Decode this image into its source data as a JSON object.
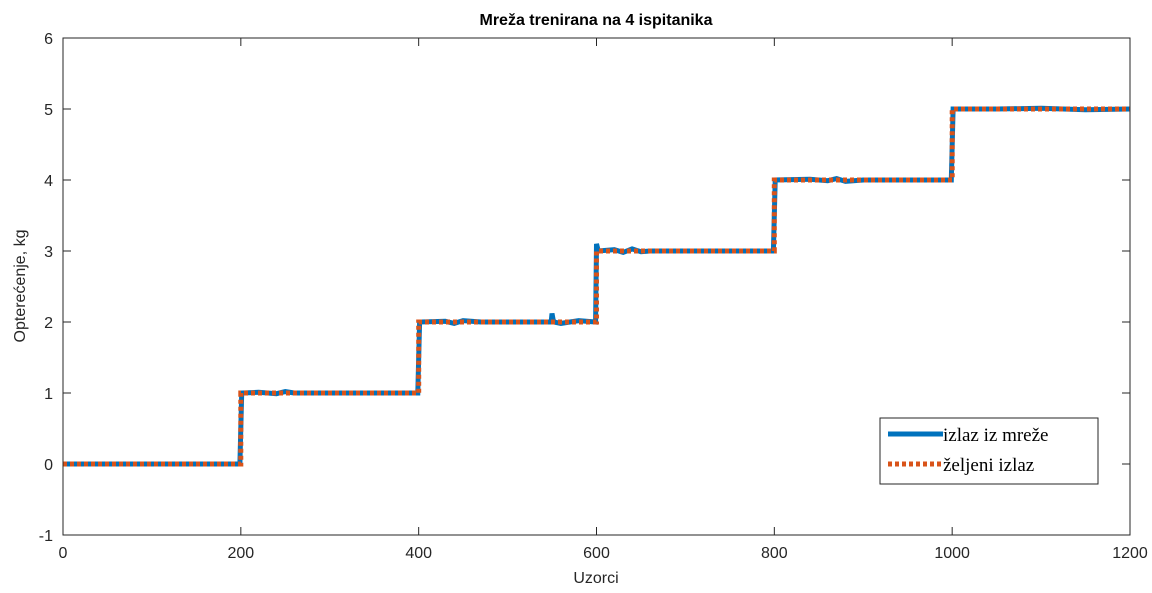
{
  "chart_data": {
    "type": "line",
    "title": "Mreža trenirana na 4 ispitanika",
    "xlabel": "Uzorci",
    "ylabel": "Opterećenje, kg",
    "xlim": [
      0,
      1200
    ],
    "ylim": [
      -1,
      6
    ],
    "xticks": [
      0,
      200,
      400,
      600,
      800,
      1000,
      1200
    ],
    "yticks": [
      -1,
      0,
      1,
      2,
      3,
      4,
      5,
      6
    ],
    "grid": false,
    "legend_position": "bottom-right",
    "series": [
      {
        "name": "izlaz iz mreže",
        "color": "#0072BD",
        "style": "solid",
        "x": [
          0,
          199,
          201,
          220,
          240,
          250,
          260,
          300,
          399,
          401,
          430,
          440,
          450,
          470,
          500,
          549,
          550,
          551,
          552,
          560,
          580,
          599,
          600,
          601,
          602,
          620,
          630,
          640,
          650,
          660,
          700,
          799,
          801,
          840,
          860,
          870,
          880,
          900,
          999,
          1001,
          1050,
          1100,
          1150,
          1200
        ],
        "y": [
          0,
          0,
          1,
          1.01,
          0.99,
          1.02,
          1,
          1,
          1,
          2,
          2.01,
          1.98,
          2.02,
          2,
          2,
          2,
          2.12,
          2.05,
          2,
          1.98,
          2.02,
          2,
          3.1,
          3.05,
          3,
          3.02,
          2.98,
          3.03,
          2.99,
          3,
          3,
          3,
          4,
          4.01,
          3.99,
          4.02,
          3.98,
          4,
          4,
          5,
          5,
          5.01,
          4.99,
          5
        ]
      },
      {
        "name": "željeni izlaz",
        "color": "#D95319",
        "style": "dotted",
        "x": [
          0,
          200,
          200,
          400,
          400,
          600,
          600,
          800,
          800,
          1000,
          1000,
          1200
        ],
        "y": [
          0,
          0,
          1,
          1,
          2,
          2,
          3,
          3,
          4,
          4,
          5,
          5
        ]
      }
    ]
  }
}
